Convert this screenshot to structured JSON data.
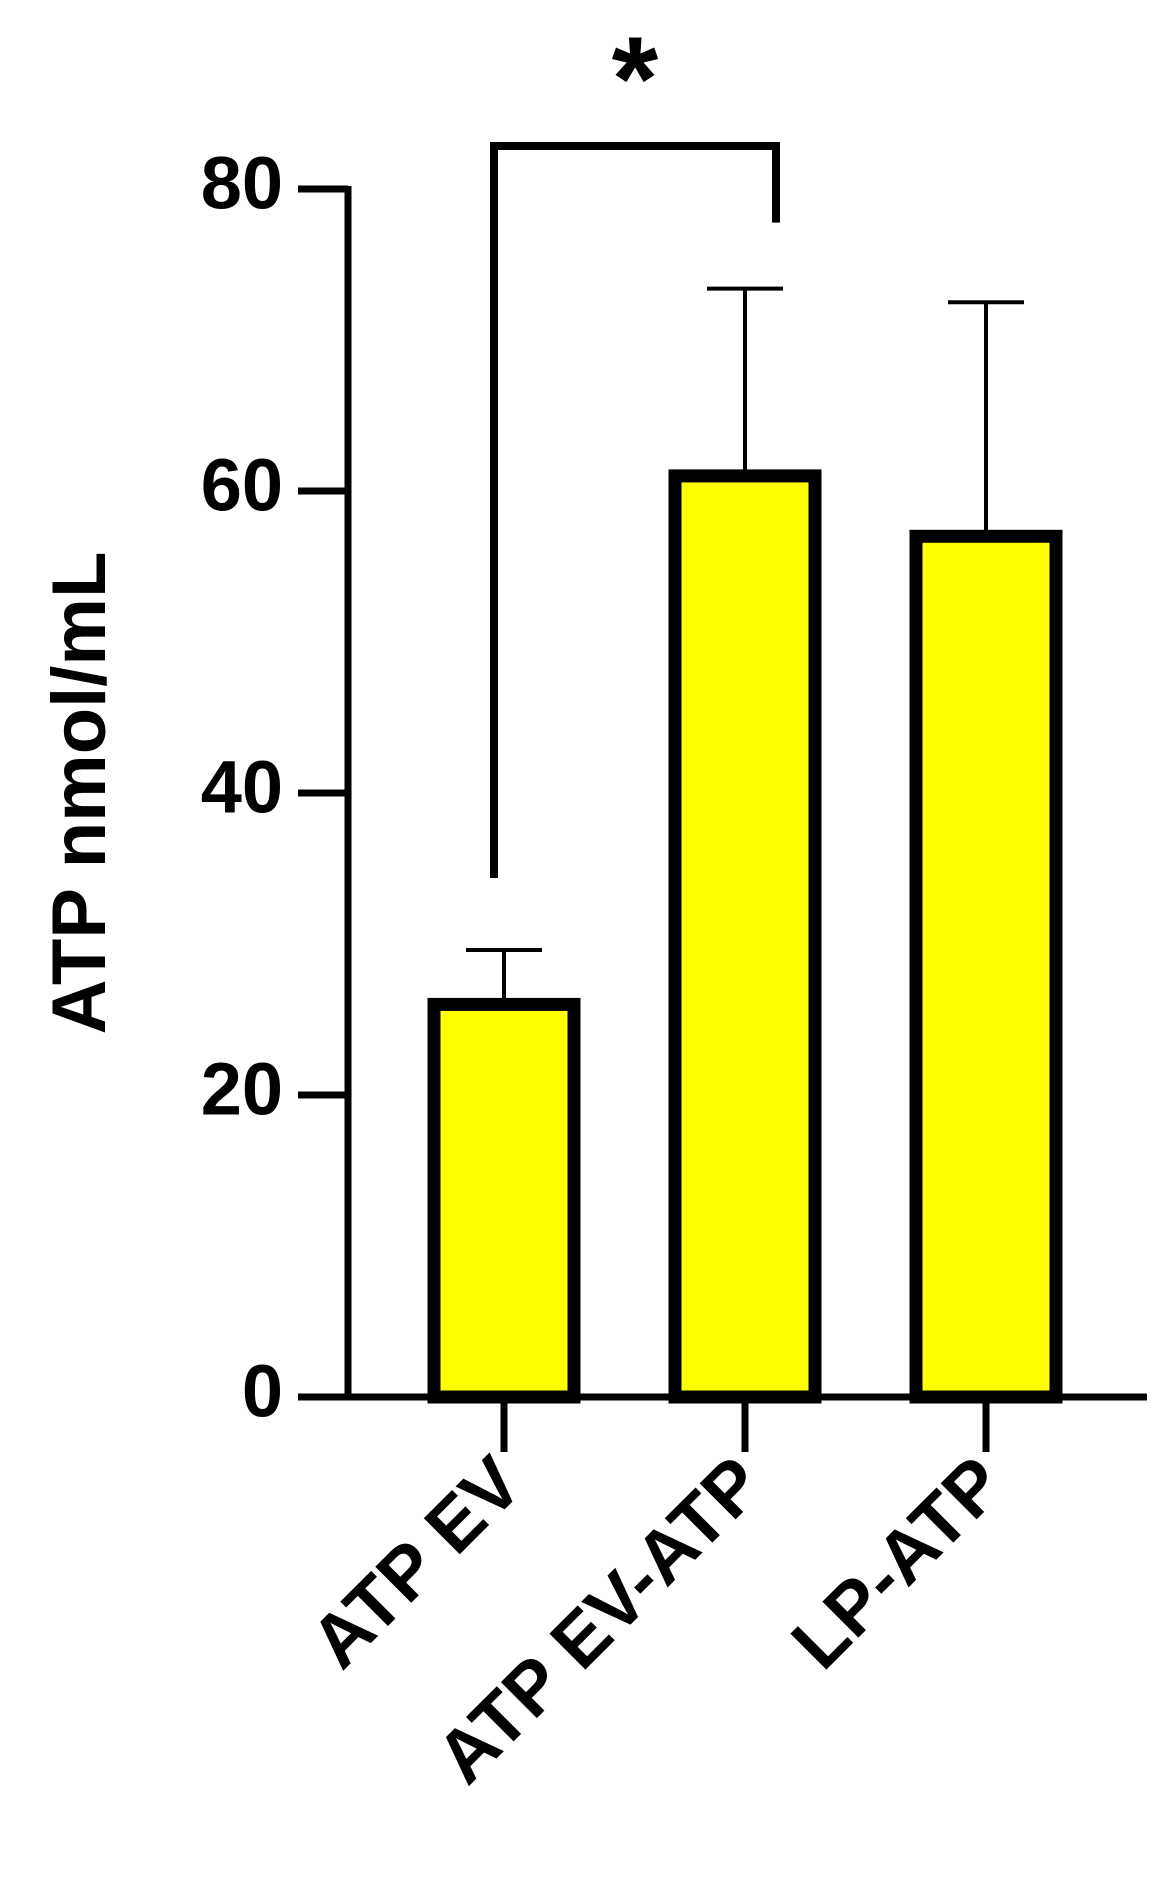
{
  "chart_data": {
    "type": "bar",
    "y_label": "ATP nmol/mL",
    "categories": [
      "ATP EV",
      "ATP EV-ATP",
      "LP-ATP"
    ],
    "values": [
      26,
      61,
      57
    ],
    "errors": [
      3.6,
      12.4,
      15.5
    ],
    "color": "#ffff00",
    "ylim": [
      0,
      80
    ],
    "yticks": [
      0,
      20,
      40,
      60,
      80
    ],
    "annotations": [
      {
        "text": "*"
      }
    ]
  }
}
